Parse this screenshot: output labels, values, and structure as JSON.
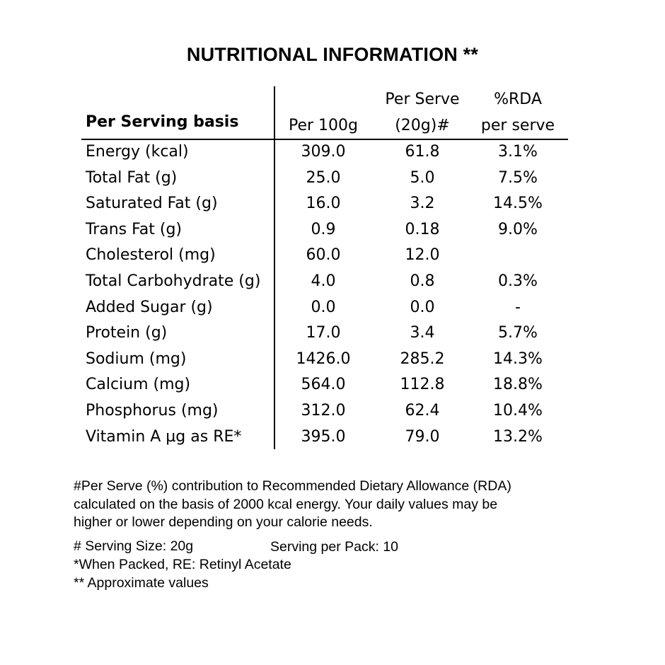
{
  "title": "NUTRITIONAL INFORMATION **",
  "table": {
    "header": {
      "basis": "Per Serving basis",
      "col1": "Per 100g",
      "col2_line1": "Per Serve",
      "col2_line2": "(20g)#",
      "col3_line1": "%RDA",
      "col3_line2": "per serve"
    },
    "rows": [
      {
        "name": "Energy (kcal)",
        "per100": "309.0",
        "perServe": "61.8",
        "rda": "3.1%"
      },
      {
        "name": "Total Fat (g)",
        "per100": "25.0",
        "perServe": "5.0",
        "rda": "7.5%"
      },
      {
        "name": "Saturated Fat (g)",
        "per100": "16.0",
        "perServe": "3.2",
        "rda": "14.5%"
      },
      {
        "name": "Trans Fat (g)",
        "per100": "0.9",
        "perServe": "0.18",
        "rda": "9.0%"
      },
      {
        "name": "Cholesterol (mg)",
        "per100": "60.0",
        "perServe": "12.0",
        "rda": ""
      },
      {
        "name": "Total Carbohydrate (g)",
        "per100": "4.0",
        "perServe": "0.8",
        "rda": "0.3%"
      },
      {
        "name": "Added Sugar (g)",
        "per100": "0.0",
        "perServe": "0.0",
        "rda": "-"
      },
      {
        "name": "Protein  (g)",
        "per100": "17.0",
        "perServe": "3.4",
        "rda": "5.7%"
      },
      {
        "name": "Sodium (mg)",
        "per100": "1426.0",
        "perServe": "285.2",
        "rda": "14.3%"
      },
      {
        "name": "Calcium (mg)",
        "per100": "564.0",
        "perServe": "112.8",
        "rda": "18.8%"
      },
      {
        "name": "Phosphorus (mg)",
        "per100": "312.0",
        "perServe": "62.4",
        "rda": "10.4%"
      },
      {
        "name": "Vitamin A µg as RE*",
        "per100": "395.0",
        "perServe": "79.0",
        "rda": "13.2%"
      }
    ]
  },
  "notes": {
    "rda_line1": "#Per Serve (%) contribution to Recommended Dietary Allowance (RDA)",
    "rda_line2": "calculated on the basis of 2000 kcal energy. Your daily values may be",
    "rda_line3": "higher or lower depending on your calorie needs.",
    "serving_size": "# Serving Size: 20g",
    "serving_per_pack": "Serving per Pack: 10",
    "packed": "*When Packed, RE: Retinyl Acetate",
    "approx": "** Approximate values"
  }
}
